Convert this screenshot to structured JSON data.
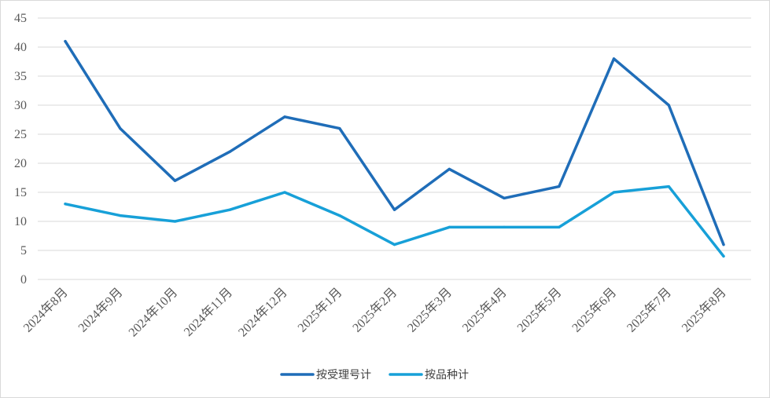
{
  "chart_data": {
    "type": "line",
    "title": "",
    "xlabel": "",
    "ylabel": "",
    "ylim": [
      0,
      45
    ],
    "yticks": [
      0,
      5,
      10,
      15,
      20,
      25,
      30,
      35,
      40,
      45
    ],
    "grid": "horizontal",
    "legend": "bottom-center",
    "categories": [
      "2024年8月",
      "2024年9月",
      "2024年10月",
      "2024年11月",
      "2024年12月",
      "2025年1月",
      "2025年2月",
      "2025年3月",
      "2025年4月",
      "2025年5月",
      "2025年6月",
      "2025年7月",
      "2025年8月"
    ],
    "series": [
      {
        "name": "按受理号计",
        "color": "#1f6db8",
        "values": [
          41,
          26,
          17,
          22,
          28,
          26,
          12,
          19,
          14,
          16,
          38,
          30,
          6
        ]
      },
      {
        "name": "按品种计",
        "color": "#17a0d8",
        "values": [
          13,
          11,
          10,
          12,
          15,
          11,
          6,
          9,
          9,
          9,
          15,
          16,
          4
        ]
      }
    ]
  }
}
